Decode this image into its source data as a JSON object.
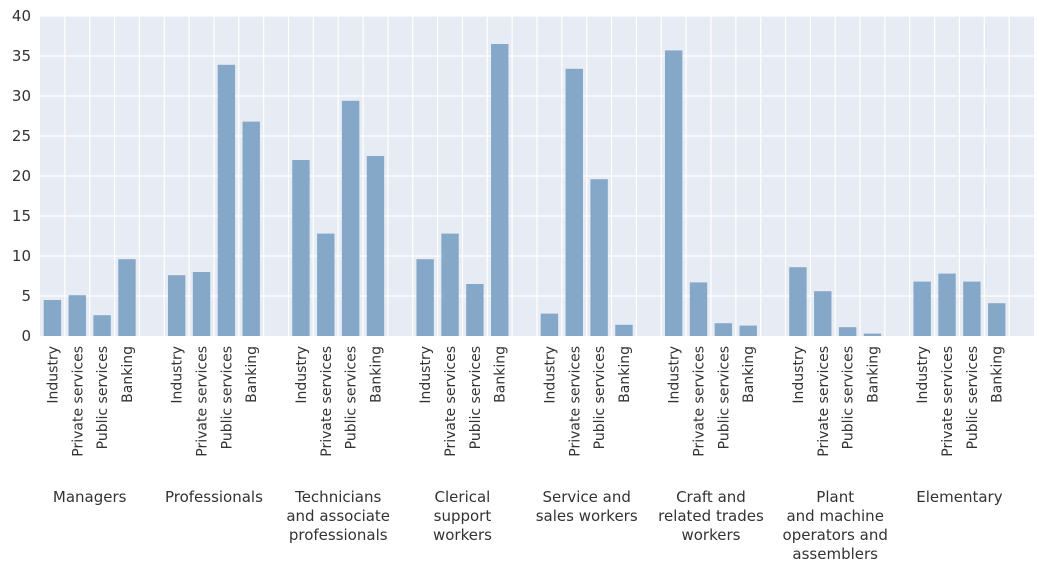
{
  "chart_data": {
    "type": "bar",
    "title": "",
    "xlabel": "",
    "ylabel": "",
    "ylim": [
      0,
      40
    ],
    "yticks": [
      0,
      5,
      10,
      15,
      20,
      25,
      30,
      35,
      40
    ],
    "ytick_labels": [
      "0",
      "5",
      "10",
      "15",
      "20",
      "25",
      "30",
      "35",
      "40"
    ],
    "grid": true,
    "legend": "none",
    "bar_color": "#86a8c8",
    "background_color": "#e6ebf4",
    "subcategories": [
      "Industry",
      "Private services",
      "Public services",
      "Banking"
    ],
    "groups": [
      {
        "label": [
          "Managers"
        ],
        "values": [
          4.5,
          5.1,
          2.6,
          9.6
        ]
      },
      {
        "label": [
          "Professionals"
        ],
        "values": [
          7.6,
          8.0,
          33.9,
          26.8
        ]
      },
      {
        "label": [
          "Technicians",
          "and associate",
          "professionals"
        ],
        "values": [
          22.0,
          12.8,
          29.4,
          22.5
        ]
      },
      {
        "label": [
          "Clerical",
          "support",
          "workers"
        ],
        "values": [
          9.6,
          12.8,
          6.5,
          36.5
        ]
      },
      {
        "label": [
          "Service and",
          "sales workers"
        ],
        "values": [
          2.8,
          33.4,
          19.6,
          1.4
        ]
      },
      {
        "label": [
          "Craft and",
          "related trades",
          "workers"
        ],
        "values": [
          35.7,
          6.7,
          1.6,
          1.3
        ]
      },
      {
        "label": [
          "Plant",
          "and machine",
          "operators and",
          "assemblers"
        ],
        "values": [
          8.6,
          5.6,
          1.1,
          0.3
        ]
      },
      {
        "label": [
          "Elementary"
        ],
        "values": [
          6.8,
          7.8,
          6.8,
          4.1
        ]
      }
    ]
  }
}
